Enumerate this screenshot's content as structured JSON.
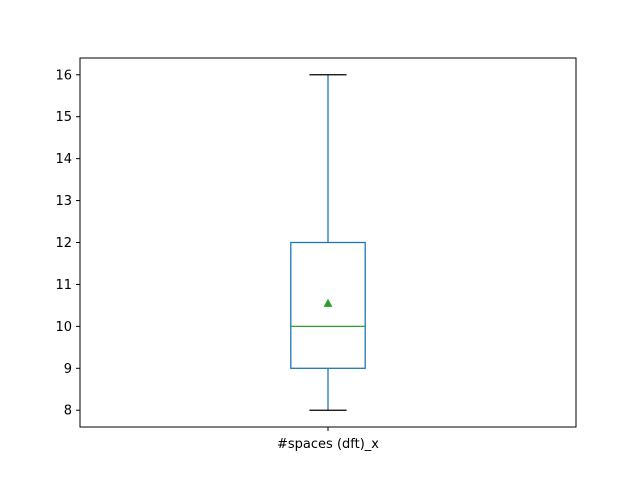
{
  "chart_data": {
    "type": "box",
    "categories": [
      "#spaces (dft)_x"
    ],
    "boxes": [
      {
        "name": "#spaces (dft)_x",
        "whisker_low": 8,
        "q1": 9,
        "median": 10,
        "q3": 12,
        "whisker_high": 16,
        "mean": 10.55
      }
    ],
    "title": "",
    "xlabel": "",
    "ylabel": "",
    "ylim": [
      7.6,
      16.4
    ],
    "yticks": [
      8,
      9,
      10,
      11,
      12,
      13,
      14,
      15,
      16
    ],
    "grid": false,
    "colors": {
      "box": "#1f77b4",
      "median": "#2ca02c",
      "mean_marker": "#2ca02c",
      "caps": "#000000",
      "axes": "#000000"
    }
  }
}
